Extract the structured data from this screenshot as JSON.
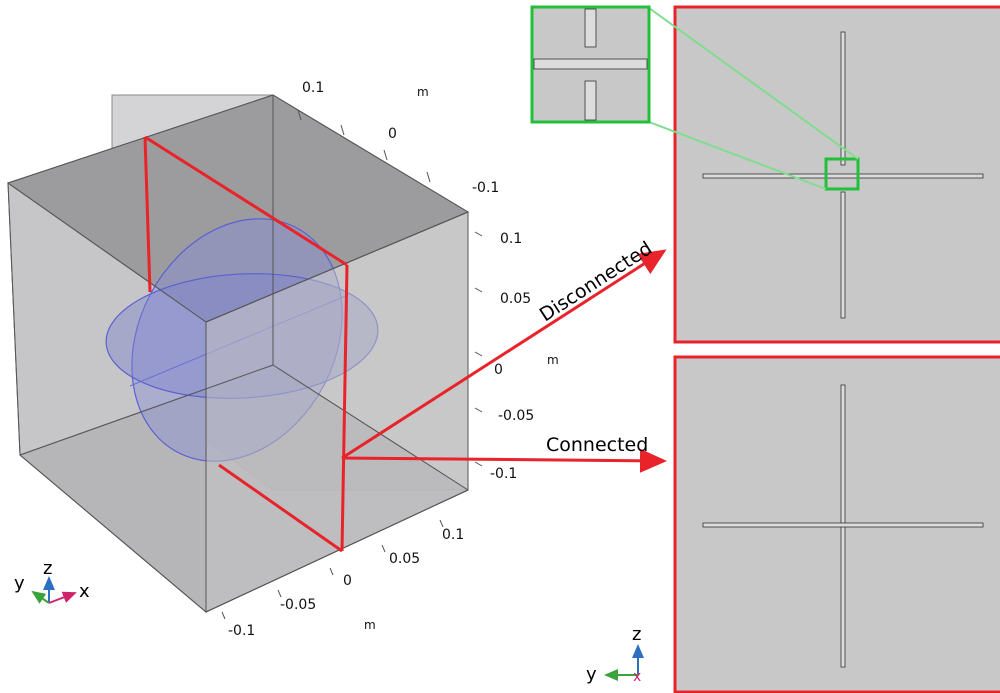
{
  "axes_3d": {
    "top_axis_ticks": [
      "0.1",
      "0",
      "-0.1"
    ],
    "top_axis_unit": "m",
    "right_axis_ticks": [
      "0.1",
      "0.05",
      "0",
      "-0.05",
      "-0.1"
    ],
    "right_axis_unit": "m",
    "bottom_axis_ticks": [
      "0.1",
      "0.05",
      "0",
      "-0.05",
      "-0.1"
    ],
    "bottom_axis_unit": "m"
  },
  "callouts": {
    "disconnected": "Disconnected",
    "connected": "Connected"
  },
  "triad_3d": {
    "y": "y",
    "z": "z",
    "x": "x"
  },
  "triad_2d": {
    "z": "z",
    "y": "y",
    "x": "x"
  },
  "colors": {
    "highlight_red": "#e8232a",
    "zoom_green": "#22c03a",
    "zoom_link_green": "#7fdd8f",
    "panel_fill": "#c8c8c8",
    "sphere_blue": "#8a8fd8",
    "axis_z": "#2d6fc0",
    "axis_y": "#3aa33a",
    "axis_x": "#d0236a"
  }
}
